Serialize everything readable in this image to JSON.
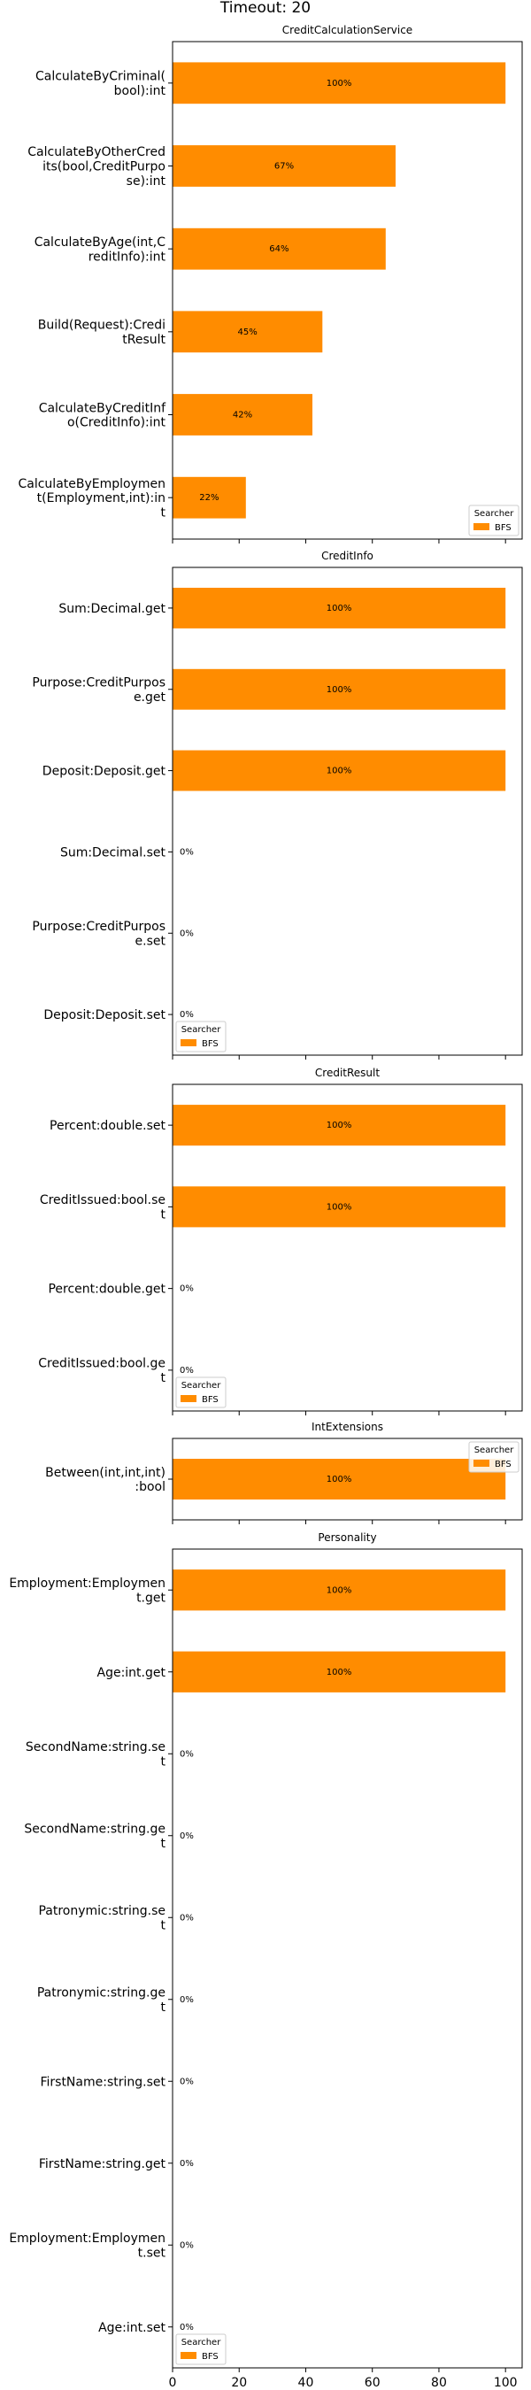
{
  "figure_title": "Timeout: 20",
  "chart_data": [
    {
      "type": "bar",
      "orientation": "horizontal",
      "title": "CreditCalculationService",
      "categories": [
        "CalculateByCriminal(\nbool):int",
        "CalculateByOtherCred\nits(bool,CreditPurpo\nse):int",
        "CalculateByAge(int,C\nreditInfo):int",
        "Build(Request):Credi\ntResult",
        "CalculateByCreditInf\no(CreditInfo):int",
        "CalculateByEmploymen\nt(Employment,int):in\nt"
      ],
      "series": [
        {
          "name": "BFS",
          "values": [
            100,
            67,
            64,
            45,
            42,
            22
          ]
        }
      ],
      "data_labels": [
        "100%",
        "67%",
        "64%",
        "45%",
        "42%",
        "22%"
      ],
      "xlim": [
        0,
        105
      ],
      "legend": {
        "title": "Searcher",
        "entries": [
          "BFS"
        ],
        "position": "lower-right"
      }
    },
    {
      "type": "bar",
      "orientation": "horizontal",
      "title": "CreditInfo",
      "categories": [
        "Sum:Decimal.get",
        "Purpose:CreditPurpos\ne.get",
        "Deposit:Deposit.get",
        "Sum:Decimal.set",
        "Purpose:CreditPurpos\ne.set",
        "Deposit:Deposit.set"
      ],
      "series": [
        {
          "name": "BFS",
          "values": [
            100,
            100,
            100,
            0,
            0,
            0
          ]
        }
      ],
      "data_labels": [
        "100%",
        "100%",
        "100%",
        "0%",
        "0%",
        "0%"
      ],
      "xlim": [
        0,
        105
      ],
      "legend": {
        "title": "Searcher",
        "entries": [
          "BFS"
        ],
        "position": "lower-left"
      }
    },
    {
      "type": "bar",
      "orientation": "horizontal",
      "title": "CreditResult",
      "categories": [
        "Percent:double.set",
        "CreditIssued:bool.se\nt",
        "Percent:double.get",
        "CreditIssued:bool.ge\nt"
      ],
      "series": [
        {
          "name": "BFS",
          "values": [
            100,
            100,
            0,
            0
          ]
        }
      ],
      "data_labels": [
        "100%",
        "100%",
        "0%",
        "0%"
      ],
      "xlim": [
        0,
        105
      ],
      "legend": {
        "title": "Searcher",
        "entries": [
          "BFS"
        ],
        "position": "lower-left"
      }
    },
    {
      "type": "bar",
      "orientation": "horizontal",
      "title": "IntExtensions",
      "categories": [
        "Between(int,int,int)\n:bool"
      ],
      "series": [
        {
          "name": "BFS",
          "values": [
            100
          ]
        }
      ],
      "data_labels": [
        "100%"
      ],
      "xlim": [
        0,
        105
      ],
      "legend": {
        "title": "Searcher",
        "entries": [
          "BFS"
        ],
        "position": "upper-right"
      }
    },
    {
      "type": "bar",
      "orientation": "horizontal",
      "title": "Personality",
      "categories": [
        "Employment:Employmen\nt.get",
        "Age:int.get",
        "SecondName:string.se\nt",
        "SecondName:string.ge\nt",
        "Patronymic:string.se\nt",
        "Patronymic:string.ge\nt",
        "FirstName:string.set",
        "FirstName:string.get",
        "Employment:Employmen\nt.set",
        "Age:int.set"
      ],
      "series": [
        {
          "name": "BFS",
          "values": [
            100,
            100,
            0,
            0,
            0,
            0,
            0,
            0,
            0,
            0
          ]
        }
      ],
      "data_labels": [
        "100%",
        "100%",
        "0%",
        "0%",
        "0%",
        "0%",
        "0%",
        "0%",
        "0%",
        "0%"
      ],
      "xlim": [
        0,
        105
      ],
      "xticks": [
        0,
        20,
        40,
        60,
        80,
        100
      ],
      "legend": {
        "title": "Searcher",
        "entries": [
          "BFS"
        ],
        "position": "lower-left"
      }
    }
  ],
  "colors": {
    "bar": "#ff8c00",
    "axis": "#000000",
    "legend_border": "#cccccc",
    "background": "#ffffff"
  }
}
